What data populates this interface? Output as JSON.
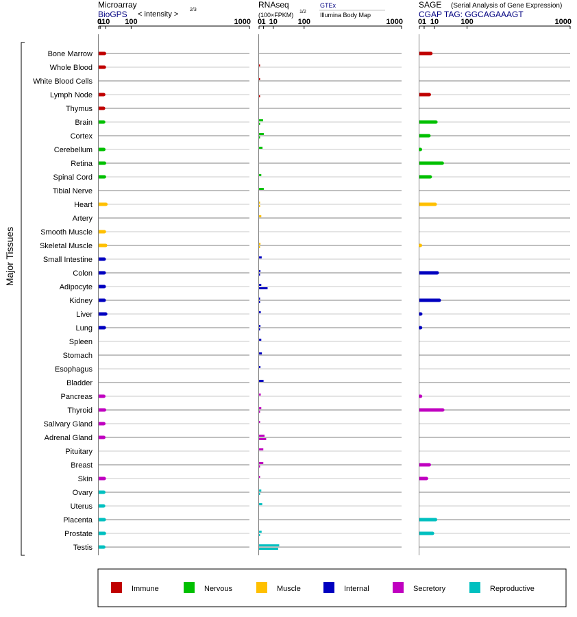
{
  "chart_data": {
    "type": "bar",
    "tissues_axis_label": "Major Tissues",
    "tissues": [
      "Bone Marrow",
      "Whole Blood",
      "White Blood Cells",
      "Lymph Node",
      "Thymus",
      "Brain",
      "Cortex",
      "Cerebellum",
      "Retina",
      "Spinal Cord",
      "Tibial Nerve",
      "Heart",
      "Artery",
      "Smooth Muscle",
      "Skeletal Muscle",
      "Small Intestine",
      "Colon",
      "Adipocyte",
      "Kidney",
      "Liver",
      "Lung",
      "Spleen",
      "Stomach",
      "Esophagus",
      "Bladder",
      "Pancreas",
      "Thyroid",
      "Salivary Gland",
      "Adrenal Gland",
      "Pituitary",
      "Breast",
      "Skin",
      "Ovary",
      "Uterus",
      "Placenta",
      "Prostate",
      "Testis"
    ],
    "groups": [
      "Immune",
      "Immune",
      "Immune",
      "Immune",
      "Immune",
      "Nervous",
      "Nervous",
      "Nervous",
      "Nervous",
      "Nervous",
      "Nervous",
      "Muscle",
      "Muscle",
      "Muscle",
      "Muscle",
      "Internal",
      "Internal",
      "Internal",
      "Internal",
      "Internal",
      "Internal",
      "Internal",
      "Internal",
      "Internal",
      "Internal",
      "Secretory",
      "Secretory",
      "Secretory",
      "Secretory",
      "Secretory",
      "Secretory",
      "Secretory",
      "Reproductive",
      "Reproductive",
      "Reproductive",
      "Reproductive",
      "Reproductive"
    ],
    "panels": [
      {
        "id": "microarray",
        "title": "Microarray",
        "source": "BioGPS",
        "scale_label": "< intensity >",
        "scale_exponent": "2/3",
        "axis_ticks": [
          "0",
          "1",
          "10",
          "100",
          "1000"
        ],
        "scale": "power 2/3",
        "xlim": [
          0,
          1000
        ],
        "series": [
          {
            "values": [
              7.5,
              7.3,
              null,
              6.1,
              5.8,
              6.0,
              null,
              6.3,
              7.6,
              7.4,
              null,
              10.5,
              null,
              7.3,
              9.8,
              7.0,
              7.0,
              7.0,
              7.0,
              10.0,
              7.2,
              null,
              null,
              null,
              null,
              6.3,
              7.6,
              6.3,
              6.3,
              null,
              null,
              7.1,
              6.3,
              5.9,
              7.1,
              7.3,
              6.2
            ]
          }
        ]
      },
      {
        "id": "rnaseq",
        "title": "RNAseq",
        "scale_label": "(100×FPKM)",
        "scale_exponent": "1/2",
        "axis_ticks": [
          "0",
          "1",
          "10",
          "100",
          "1000"
        ],
        "scale": "power 1/2",
        "xlim": [
          0,
          1000
        ],
        "series": [
          {
            "name": "GTEx",
            "values": [
              null,
              0.01,
              0.02,
              null,
              null,
              0.8,
              1.1,
              0.6,
              null,
              0.25,
              1.1,
              0.05,
              0.25,
              null,
              0.1,
              0.35,
              0.1,
              0.25,
              0.02,
              0.15,
              0.1,
              0.25,
              0.4,
              0.1,
              1.0,
              0.15,
              0.25,
              0.01,
              1.5,
              0.9,
              0.9,
              0.01,
              0.25,
              0.5,
              null,
              0.33,
              20.0
            ]
          },
          {
            "name": "Illumina Body Map",
            "values": [
              null,
              null,
              null,
              0.02,
              null,
              0.0,
              0.02,
              null,
              null,
              null,
              null,
              0.01,
              null,
              null,
              0.0,
              null,
              0.01,
              3.6,
              0.01,
              null,
              0.01,
              null,
              null,
              null,
              null,
              null,
              0.01,
              null,
              2.5,
              null,
              0.01,
              null,
              0.01,
              null,
              null,
              0.01,
              18.0
            ]
          }
        ]
      },
      {
        "id": "sage",
        "title": "SAGE",
        "title_note": "(Serial Analysis of Gene Expression)",
        "source": "CGAP TAG: GGCAGAAAGT",
        "axis_ticks": [
          "0",
          "1",
          "10",
          "100",
          "1000"
        ],
        "scale": "power 1/2",
        "xlim": [
          0,
          1000
        ],
        "series": [
          {
            "values": [
              5.8,
              null,
              null,
              4.3,
              null,
              12.0,
              4.0,
              0.04,
              23.0,
              5.2,
              null,
              11.0,
              null,
              null,
              0.03,
              null,
              14.0,
              null,
              17.5,
              0.08,
              0.06,
              null,
              null,
              null,
              null,
              0.06,
              24.0,
              null,
              null,
              null,
              4.3,
              2.2,
              null,
              null,
              11.5,
              7.6,
              null
            ]
          }
        ]
      }
    ],
    "legend": [
      {
        "group": "Immune",
        "label": "Immune",
        "color": "#c00000"
      },
      {
        "group": "Nervous",
        "label": "Nervous",
        "color": "#00c000"
      },
      {
        "group": "Muscle",
        "label": "Muscle",
        "color": "#ffc000"
      },
      {
        "group": "Internal",
        "label": "Internal",
        "color": "#0000c0"
      },
      {
        "group": "Secretory",
        "label": "Secretory",
        "color": "#c000c0"
      },
      {
        "group": "Reproductive",
        "label": "Reproductive",
        "color": "#00c0c0"
      }
    ],
    "title_color": "#000000",
    "source_color": "#000080"
  }
}
